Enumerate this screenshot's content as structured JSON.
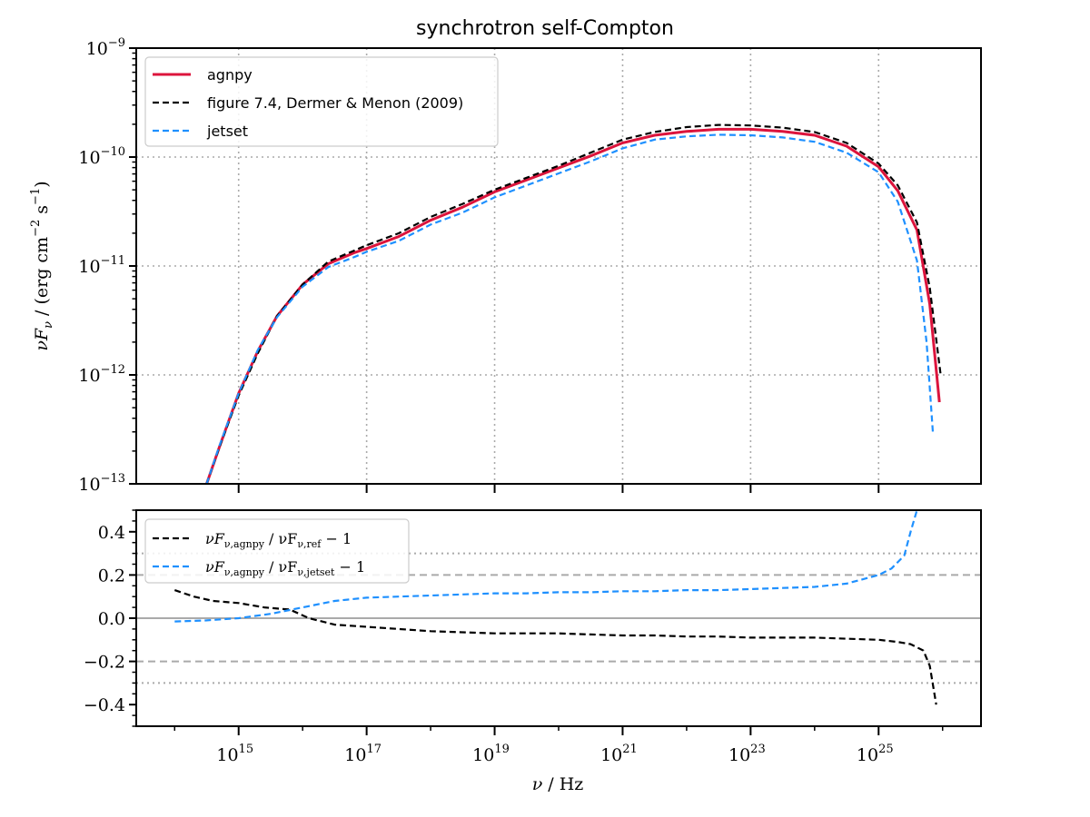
{
  "chart_data": [
    {
      "type": "line",
      "title": "synchrotron self-Compton",
      "ylabel": "νF_ν / (erg cm^-2 s^-1)",
      "xscale": "log",
      "yscale": "log",
      "xlim_log10": [
        13.4,
        26.6
      ],
      "ylim_log10": [
        -13,
        -9
      ],
      "ytick_labels": [
        {
          "exp": "-13"
        },
        {
          "exp": "-12"
        },
        {
          "exp": "-11"
        },
        {
          "exp": "-10"
        },
        {
          "exp": "-9"
        }
      ],
      "grid": "dotted",
      "legend": {
        "position": "top-left",
        "entries": [
          "agnpy",
          "figure 7.4, Dermer & Menon (2009)",
          "jetset"
        ]
      },
      "series": [
        {
          "name": "agnpy",
          "color": "#dc143c",
          "style": "solid",
          "x_log10": [
            14.5,
            14.7,
            15.0,
            15.3,
            15.6,
            16.0,
            16.4,
            16.8,
            17.0,
            17.5,
            18.0,
            18.5,
            19.0,
            19.5,
            20.0,
            20.5,
            21.0,
            21.5,
            22.0,
            22.5,
            23.0,
            23.5,
            24.0,
            24.5,
            25.0,
            25.3,
            25.6,
            25.8,
            25.95
          ],
          "y_log10": [
            -13.0,
            -12.66,
            -12.17,
            -11.78,
            -11.46,
            -11.17,
            -10.98,
            -10.88,
            -10.84,
            -10.73,
            -10.58,
            -10.46,
            -10.32,
            -10.21,
            -10.1,
            -9.99,
            -9.87,
            -9.8,
            -9.765,
            -9.745,
            -9.745,
            -9.765,
            -9.8,
            -9.9,
            -10.09,
            -10.31,
            -10.67,
            -11.35,
            -12.25
          ]
        },
        {
          "name": "figure 7.4, Dermer & Menon (2009)",
          "color": "#000000",
          "style": "dashed",
          "x_log10": [
            14.5,
            14.7,
            15.0,
            15.3,
            15.6,
            16.0,
            16.4,
            16.8,
            17.0,
            17.5,
            18.0,
            18.5,
            19.0,
            19.5,
            20.0,
            20.5,
            21.0,
            21.5,
            22.0,
            22.5,
            23.0,
            23.5,
            24.0,
            24.5,
            25.0,
            25.3,
            25.6,
            25.8,
            25.97
          ],
          "y_log10": [
            -13.0,
            -12.66,
            -12.19,
            -11.8,
            -11.46,
            -11.17,
            -10.96,
            -10.86,
            -10.81,
            -10.7,
            -10.55,
            -10.43,
            -10.3,
            -10.19,
            -10.08,
            -9.96,
            -9.84,
            -9.77,
            -9.725,
            -9.705,
            -9.71,
            -9.73,
            -9.77,
            -9.87,
            -10.06,
            -10.26,
            -10.6,
            -11.2,
            -12.0
          ]
        },
        {
          "name": "jetset",
          "color": "#1e90ff",
          "style": "dashed",
          "x_log10": [
            14.5,
            14.7,
            15.0,
            15.3,
            15.6,
            16.0,
            16.4,
            16.8,
            17.0,
            17.5,
            18.0,
            18.5,
            19.0,
            19.5,
            20.0,
            20.5,
            21.0,
            21.5,
            22.0,
            22.5,
            23.0,
            23.5,
            24.0,
            24.5,
            25.0,
            25.3,
            25.6,
            25.75,
            25.85
          ],
          "y_log10": [
            -13.0,
            -12.65,
            -12.17,
            -11.77,
            -11.47,
            -11.19,
            -11.01,
            -10.92,
            -10.87,
            -10.77,
            -10.62,
            -10.51,
            -10.37,
            -10.26,
            -10.15,
            -10.04,
            -9.92,
            -9.84,
            -9.81,
            -9.795,
            -9.8,
            -9.82,
            -9.86,
            -9.96,
            -10.14,
            -10.41,
            -10.95,
            -11.7,
            -12.55
          ]
        }
      ]
    },
    {
      "type": "line",
      "xlabel": "ν / Hz",
      "xscale": "log",
      "xlim_log10": [
        13.4,
        26.6
      ],
      "ylim": [
        -0.5,
        0.5
      ],
      "yticks": [
        -0.4,
        -0.2,
        0.0,
        0.2,
        0.4
      ],
      "ytick_labels": [
        "−0.4",
        "−0.2",
        "0.0",
        "0.2",
        "0.4"
      ],
      "xtick_labels": [
        {
          "exp": "15"
        },
        {
          "exp": "17"
        },
        {
          "exp": "19"
        },
        {
          "exp": "21"
        },
        {
          "exp": "23"
        },
        {
          "exp": "25"
        }
      ],
      "reference_lines": {
        "solid": [
          0.0
        ],
        "dashed": [
          -0.2,
          0.2
        ],
        "dotted": [
          -0.3,
          0.3
        ]
      },
      "legend": {
        "position": "top-left",
        "entries": [
          {
            "main": "νF",
            "sub": "ν,agnpy",
            "mid": " / νF",
            "sub2": "ν,ref",
            "tail": " − 1"
          },
          {
            "main": "νF",
            "sub": "ν,agnpy",
            "mid": " / νF",
            "sub2": "ν,jetset",
            "tail": " − 1"
          }
        ]
      },
      "series": [
        {
          "name": "νF_ν,agnpy / νF_ν,ref − 1",
          "color": "#000000",
          "style": "dashed",
          "x_log10": [
            14.0,
            14.3,
            14.6,
            15.0,
            15.4,
            15.8,
            16.1,
            16.5,
            17.0,
            17.5,
            18.0,
            18.5,
            19.0,
            19.5,
            20.0,
            20.5,
            21.0,
            21.5,
            22.0,
            22.5,
            23.0,
            23.5,
            24.0,
            24.5,
            25.0,
            25.3,
            25.5,
            25.7,
            25.8,
            25.9
          ],
          "y": [
            0.13,
            0.1,
            0.08,
            0.07,
            0.05,
            0.04,
            0.0,
            -0.03,
            -0.04,
            -0.05,
            -0.06,
            -0.065,
            -0.07,
            -0.07,
            -0.07,
            -0.075,
            -0.08,
            -0.08,
            -0.085,
            -0.085,
            -0.09,
            -0.09,
            -0.09,
            -0.095,
            -0.1,
            -0.11,
            -0.12,
            -0.15,
            -0.22,
            -0.4
          ]
        },
        {
          "name": "νF_ν,agnpy / νF_ν,jetset − 1",
          "color": "#1e90ff",
          "style": "dashed",
          "x_log10": [
            14.0,
            14.5,
            15.0,
            15.5,
            16.0,
            16.5,
            17.0,
            17.5,
            18.0,
            18.5,
            19.0,
            19.5,
            20.0,
            20.5,
            21.0,
            21.5,
            22.0,
            22.5,
            23.0,
            23.5,
            24.0,
            24.5,
            25.0,
            25.2,
            25.4,
            25.5,
            25.6
          ],
          "y": [
            -0.015,
            -0.01,
            0.0,
            0.02,
            0.05,
            0.08,
            0.095,
            0.1,
            0.105,
            0.11,
            0.115,
            0.115,
            0.12,
            0.12,
            0.125,
            0.125,
            0.13,
            0.13,
            0.135,
            0.14,
            0.145,
            0.16,
            0.2,
            0.23,
            0.29,
            0.4,
            0.5
          ]
        }
      ]
    }
  ]
}
